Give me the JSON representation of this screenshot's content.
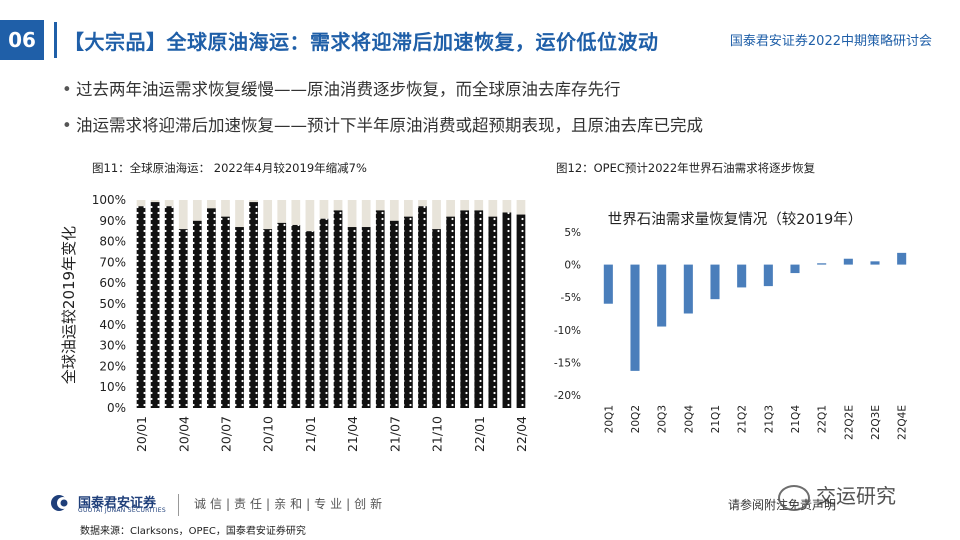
{
  "page": {
    "number": "06",
    "title": "【大宗品】全球原油海运：需求将迎滞后加速恢复，运价低位波动",
    "org_title": "国泰君安证券2022中期策略研讨会",
    "bullets": [
      "过去两年油运需求恢复缓慢——原油消费逐步恢复，而全球原油去库存先行",
      "油运需求将迎滞后加速恢复——预计下半年原油消费或超预期表现，且原油去库已完成"
    ],
    "footer": {
      "logo_name": "国泰君安证券",
      "logo_sub": "GUOTAI JUNAN SECURITIES",
      "slogan": "诚信|责任|亲和|专业|创新",
      "source": "数据来源：Clarksons，OPEC，国泰君安证券研究",
      "disclaimer": "请参阅附注免责声明",
      "watermark": "交运研究"
    },
    "colors": {
      "brand_blue": "#1f5fa8",
      "bar_blue": "#4a7ebb",
      "bar_black": "#111111",
      "bar_cap": "#e8e4da"
    }
  },
  "chart_data": [
    {
      "type": "bar",
      "figure_caption": "图11：全球原油海运： 2022年4月较2019年缩减7%",
      "title": "",
      "ylabel": "全球油运较2019年变化",
      "ylim": [
        0,
        100
      ],
      "y_ticks": [
        "0%",
        "10%",
        "20%",
        "30%",
        "40%",
        "50%",
        "60%",
        "70%",
        "80%",
        "90%",
        "100%"
      ],
      "x_tick_labels": [
        "20/01",
        "20/04",
        "20/07",
        "20/10",
        "21/01",
        "21/04",
        "21/07",
        "21/10",
        "22/01",
        "22/04"
      ],
      "categories": [
        "20/01",
        "20/02",
        "20/03",
        "20/04",
        "20/05",
        "20/06",
        "20/07",
        "20/08",
        "20/09",
        "20/10",
        "20/11",
        "20/12",
        "21/01",
        "21/02",
        "21/03",
        "21/04",
        "21/05",
        "21/06",
        "21/07",
        "21/08",
        "21/09",
        "21/10",
        "21/11",
        "21/12",
        "22/01",
        "22/02",
        "22/03",
        "22/04"
      ],
      "values": [
        97,
        99,
        97,
        86,
        90,
        96,
        92,
        87,
        99,
        86,
        89,
        88,
        85,
        91,
        95,
        87,
        87,
        95,
        90,
        92,
        97,
        86,
        92,
        95,
        95,
        92,
        94,
        93
      ]
    },
    {
      "type": "bar",
      "figure_caption": "图12：OPEC预计2022年世界石油需求将逐步恢复",
      "title": "世界石油需求量恢复情况（较2019年）",
      "ylim": [
        -20,
        5
      ],
      "y_ticks": [
        "-20%",
        "-15%",
        "-10%",
        "-5%",
        "0%",
        "5%"
      ],
      "categories": [
        "20Q1",
        "20Q2",
        "20Q3",
        "20Q4",
        "21Q1",
        "21Q2",
        "21Q3",
        "21Q4",
        "22Q1",
        "22Q2E",
        "22Q3E",
        "22Q4E"
      ],
      "values": [
        -6.0,
        -16.3,
        -9.5,
        -7.5,
        -5.3,
        -3.5,
        -3.3,
        -1.3,
        0.2,
        0.9,
        0.5,
        1.8
      ]
    }
  ]
}
